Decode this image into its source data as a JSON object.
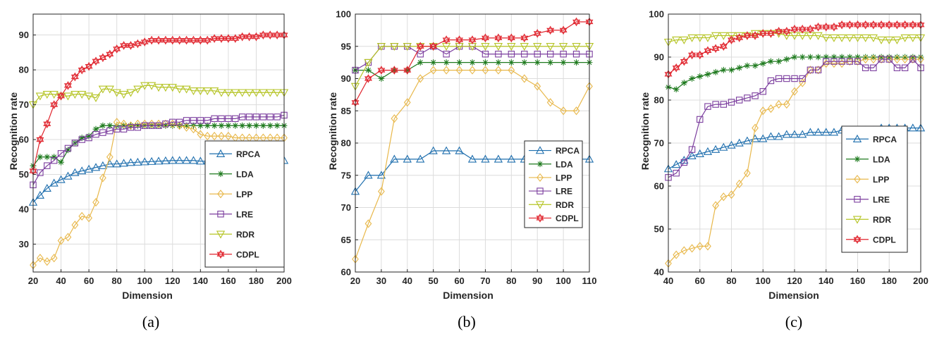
{
  "colors": {
    "RPCA": "#1f6fae",
    "LDA": "#1e7a1e",
    "LPP": "#e8b84b",
    "LRE": "#7b3d9e",
    "RDR": "#b5c425",
    "CDPL": "#e0222b"
  },
  "chart_data": [
    {
      "type": "line",
      "caption": "(a)",
      "xlabel": "Dimension",
      "ylabel": "Recognition rate",
      "xlim": [
        20,
        200
      ],
      "ylim": [
        22,
        96
      ],
      "xticks": [
        20,
        40,
        60,
        80,
        100,
        120,
        140,
        160,
        180,
        200
      ],
      "yticks": [
        30,
        40,
        50,
        60,
        70,
        80,
        90
      ],
      "grid": true,
      "x": [
        20,
        25,
        30,
        35,
        40,
        45,
        50,
        55,
        60,
        65,
        70,
        75,
        80,
        85,
        90,
        95,
        100,
        105,
        110,
        115,
        120,
        125,
        130,
        135,
        140,
        145,
        150,
        155,
        160,
        165,
        170,
        175,
        180,
        185,
        190,
        195,
        200
      ],
      "series": [
        {
          "name": "RPCA",
          "marker": "triangle-up",
          "values": [
            42,
            44,
            46,
            47.5,
            48.5,
            49.5,
            50.5,
            51,
            51.5,
            52,
            52.5,
            53,
            53,
            53.2,
            53.4,
            53.5,
            53.6,
            53.7,
            53.8,
            53.9,
            54,
            54,
            54,
            54,
            53.8,
            53.8,
            53.9,
            54,
            54,
            54,
            54,
            54,
            54,
            54,
            54,
            54,
            54
          ]
        },
        {
          "name": "LDA",
          "marker": "asterisk",
          "values": [
            52.5,
            55,
            55,
            55,
            53.5,
            57,
            59,
            60.5,
            61,
            63,
            64,
            64,
            64,
            64,
            64,
            64,
            64,
            64,
            64,
            64,
            64,
            64,
            64,
            64,
            64,
            64,
            64,
            64,
            64,
            64,
            64,
            64,
            64,
            64,
            64,
            64,
            64
          ]
        },
        {
          "name": "LPP",
          "marker": "diamond",
          "values": [
            24,
            26,
            25,
            26,
            31,
            32,
            35.5,
            38,
            37.5,
            42,
            49,
            55,
            65,
            64.5,
            64,
            64.5,
            64.5,
            64.5,
            64.5,
            64.5,
            64.5,
            64,
            63.5,
            63,
            61.5,
            61,
            61,
            61,
            61,
            60.5,
            60.5,
            60.5,
            60.5,
            60.5,
            60.5,
            60.5,
            60.5
          ]
        },
        {
          "name": "LRE",
          "marker": "square",
          "values": [
            47,
            50.5,
            52.5,
            54,
            56,
            57.5,
            59,
            60,
            60.5,
            61.5,
            62,
            62.5,
            63,
            63,
            63.5,
            63.5,
            64,
            64,
            64,
            64.5,
            65,
            65,
            65.5,
            65.5,
            65.5,
            65.5,
            66,
            66,
            66,
            66,
            66.5,
            66.5,
            66.5,
            66.5,
            66.5,
            66.5,
            67
          ]
        },
        {
          "name": "RDR",
          "marker": "triangle-down",
          "values": [
            70,
            72.5,
            73,
            73,
            72.5,
            72.5,
            73,
            73,
            72.5,
            72,
            74.5,
            74.5,
            73.5,
            73,
            73.5,
            74.5,
            75.5,
            75.5,
            75,
            75,
            75,
            74.5,
            74.5,
            74,
            74,
            74,
            74,
            73.5,
            73.5,
            73.5,
            73.5,
            73.5,
            73.5,
            73.5,
            73.5,
            73.5,
            73.5
          ]
        },
        {
          "name": "CDPL",
          "marker": "hexagram",
          "values": [
            51,
            60,
            64.5,
            70,
            72.5,
            75.5,
            78,
            80,
            81,
            82.5,
            83.5,
            84.5,
            86,
            87,
            87,
            87.5,
            88,
            88.5,
            88.5,
            88.5,
            88.5,
            88.5,
            88.5,
            88.5,
            88.5,
            88.5,
            89,
            89,
            89,
            89,
            89.5,
            89.5,
            89.5,
            90,
            90,
            90,
            90
          ]
        }
      ],
      "legend": "right-center"
    },
    {
      "type": "line",
      "caption": "(b)",
      "xlabel": "Dimension",
      "ylabel": "Recognition rate",
      "xlim": [
        20,
        110
      ],
      "ylim": [
        60,
        100
      ],
      "xticks": [
        20,
        30,
        40,
        50,
        60,
        70,
        80,
        90,
        100,
        110
      ],
      "yticks": [
        60,
        65,
        70,
        75,
        80,
        85,
        90,
        95,
        100
      ],
      "grid": true,
      "x": [
        20,
        25,
        30,
        35,
        40,
        45,
        50,
        55,
        60,
        65,
        70,
        75,
        80,
        85,
        90,
        95,
        100,
        105,
        110
      ],
      "series": [
        {
          "name": "RPCA",
          "marker": "triangle-up",
          "values": [
            72.5,
            75,
            75,
            77.5,
            77.5,
            77.5,
            78.8,
            78.8,
            78.8,
            77.5,
            77.5,
            77.5,
            77.5,
            77.5,
            77.5,
            77.5,
            77.5,
            77.5,
            77.5
          ]
        },
        {
          "name": "LDA",
          "marker": "asterisk",
          "values": [
            91.3,
            91.3,
            90,
            91.3,
            91.3,
            92.5,
            92.5,
            92.5,
            92.5,
            92.5,
            92.5,
            92.5,
            92.5,
            92.5,
            92.5,
            92.5,
            92.5,
            92.5,
            92.5
          ]
        },
        {
          "name": "LPP",
          "marker": "diamond",
          "values": [
            62,
            67.5,
            72.5,
            83.8,
            86.3,
            90,
            91.3,
            91.3,
            91.3,
            91.3,
            91.3,
            91.3,
            91.3,
            90,
            88.8,
            86.3,
            85,
            85,
            88.8
          ]
        },
        {
          "name": "LRE",
          "marker": "square",
          "values": [
            91.3,
            92.5,
            95,
            95,
            95,
            93.8,
            95,
            93.8,
            95,
            95,
            93.8,
            93.8,
            93.8,
            93.8,
            93.8,
            93.8,
            93.8,
            93.8,
            93.8
          ]
        },
        {
          "name": "RDR",
          "marker": "triangle-down",
          "values": [
            88.8,
            92.5,
            95,
            95,
            95,
            95,
            95,
            95,
            95,
            95,
            95,
            95,
            95,
            95,
            95,
            95,
            95,
            95,
            95
          ]
        },
        {
          "name": "CDPL",
          "marker": "hexagram",
          "values": [
            86.3,
            90,
            91.3,
            91.3,
            91.3,
            95,
            95,
            96,
            96,
            96,
            96.3,
            96.3,
            96.3,
            96.3,
            97,
            97.5,
            97.5,
            98.8,
            98.8
          ]
        }
      ],
      "legend": "right-bottom"
    },
    {
      "type": "line",
      "caption": "(c)",
      "xlabel": "Dimension",
      "ylabel": "Recognition rate",
      "xlim": [
        40,
        200
      ],
      "ylim": [
        40,
        100
      ],
      "xticks": [
        40,
        60,
        80,
        100,
        120,
        140,
        160,
        180,
        200
      ],
      "yticks": [
        40,
        50,
        60,
        70,
        80,
        90,
        100
      ],
      "grid": true,
      "x": [
        40,
        45,
        50,
        55,
        60,
        65,
        70,
        75,
        80,
        85,
        90,
        95,
        100,
        105,
        110,
        115,
        120,
        125,
        130,
        135,
        140,
        145,
        150,
        155,
        160,
        165,
        170,
        175,
        180,
        185,
        190,
        195,
        200
      ],
      "series": [
        {
          "name": "RPCA",
          "marker": "triangle-up",
          "values": [
            64,
            65,
            66,
            67,
            67.5,
            68,
            68.5,
            69,
            69.5,
            70,
            70.5,
            71,
            71,
            71.5,
            71.5,
            72,
            72,
            72,
            72.5,
            72.5,
            72.5,
            72.5,
            73,
            73,
            73,
            73,
            73,
            73.5,
            73.5,
            73.5,
            73.5,
            73.5,
            73.5
          ]
        },
        {
          "name": "LDA",
          "marker": "asterisk",
          "values": [
            83,
            82.5,
            84,
            85,
            85.5,
            86,
            86.5,
            87,
            87,
            87.5,
            88,
            88,
            88.5,
            89,
            89,
            89.5,
            90,
            90,
            90,
            90,
            90,
            90,
            90,
            90,
            90,
            90,
            90,
            90,
            90,
            90,
            90,
            90,
            90
          ]
        },
        {
          "name": "LPP",
          "marker": "diamond",
          "values": [
            42,
            44,
            45,
            45.5,
            46,
            46,
            55.5,
            57.5,
            58,
            60.5,
            63,
            73.5,
            77.5,
            78,
            79,
            79,
            82,
            84,
            87,
            87,
            88.5,
            88.5,
            88.5,
            89,
            89,
            89.5,
            89.5,
            89.5,
            89.5,
            89.5,
            89.5,
            89.5,
            89.5
          ]
        },
        {
          "name": "LRE",
          "marker": "square",
          "values": [
            62,
            63,
            65.5,
            68.5,
            75.5,
            78.5,
            79,
            79,
            79.5,
            80,
            80.5,
            81,
            82,
            84.5,
            85,
            85,
            85,
            85,
            87,
            87,
            89,
            89,
            89,
            89,
            89,
            87.5,
            87.5,
            89.5,
            89.5,
            87.5,
            87.5,
            89.5,
            87.5
          ]
        },
        {
          "name": "RDR",
          "marker": "triangle-down",
          "values": [
            93.5,
            94,
            94,
            94.5,
            94.5,
            94.5,
            95,
            95,
            95,
            95,
            95,
            95.5,
            95.5,
            95.5,
            95.5,
            95,
            95,
            95,
            95,
            95,
            94.5,
            94.5,
            94.5,
            94.5,
            94.5,
            94.5,
            94.5,
            94,
            94,
            94,
            94.5,
            94.5,
            94.5
          ]
        },
        {
          "name": "CDPL",
          "marker": "hexagram",
          "values": [
            86,
            87.5,
            89,
            90.5,
            90.5,
            91.5,
            92,
            92.5,
            94,
            94.5,
            95,
            95,
            95.5,
            95.5,
            96,
            96,
            96.5,
            96.5,
            96.5,
            97,
            97,
            97,
            97.5,
            97.5,
            97.5,
            97.5,
            97.5,
            97.5,
            97.5,
            97.5,
            97.5,
            97.5,
            97.5
          ]
        }
      ],
      "legend": "right-center"
    }
  ]
}
